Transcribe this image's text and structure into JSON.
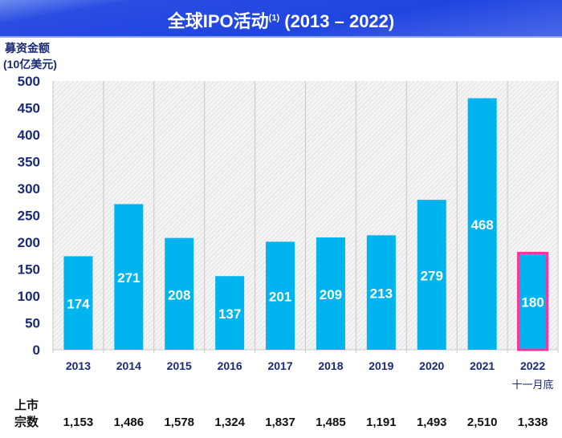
{
  "title": "全球IPO活动",
  "title_sup": "(1)",
  "title_range": " (2013 – 2022)",
  "chart_data": {
    "type": "bar",
    "ylabel": [
      "募资金额",
      "(10亿美元)"
    ],
    "ylim": [
      0,
      500
    ],
    "yticks": [
      0,
      50,
      100,
      150,
      200,
      250,
      300,
      350,
      400,
      450,
      500
    ],
    "categories": [
      "2013",
      "2014",
      "2015",
      "2016",
      "2017",
      "2018",
      "2019",
      "2020",
      "2021",
      "2022"
    ],
    "category_note": "十一月底",
    "values": [
      174,
      271,
      208,
      137,
      201,
      209,
      213,
      279,
      468,
      180
    ],
    "highlight_index": 9,
    "table_label": [
      "上市",
      "宗数"
    ],
    "table_values": [
      "1,153",
      "1,486",
      "1,578",
      "1,324",
      "1,837",
      "1,485",
      "1,191",
      "1,493",
      "2,510",
      "1,338"
    ],
    "colors": {
      "bar": "#00b4f0",
      "highlight": "#ff3399",
      "axis_text": "#1a2a78",
      "title_bg": "#1f45e0"
    }
  }
}
